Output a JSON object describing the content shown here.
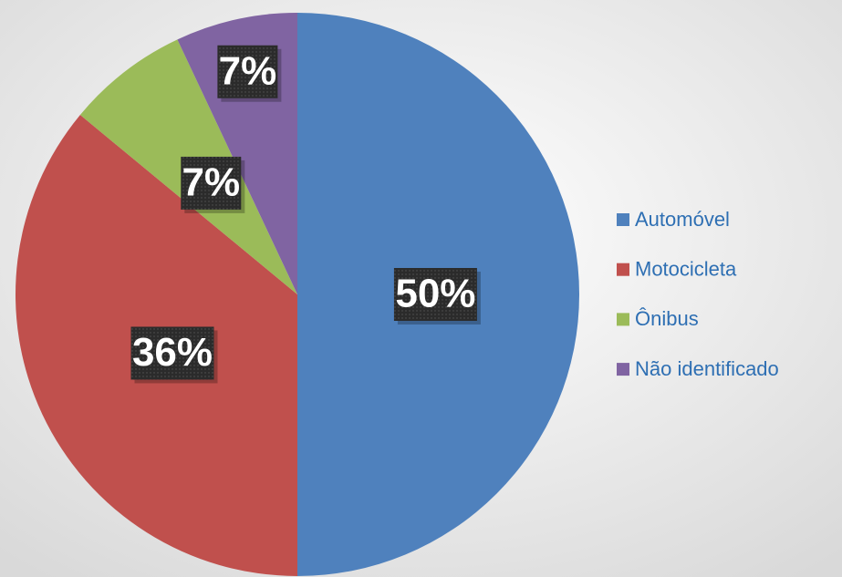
{
  "chart_data": {
    "type": "pie",
    "categories": [
      "Automóvel",
      "Motocicleta",
      "Ônibus",
      "Não identificado"
    ],
    "values": [
      50,
      36,
      7,
      7
    ],
    "value_labels": [
      "50%",
      "36%",
      "7%",
      "7%"
    ],
    "colors": [
      "#4f81bd",
      "#c0504d",
      "#9bbb59",
      "#8064a2"
    ],
    "legend": "right"
  }
}
